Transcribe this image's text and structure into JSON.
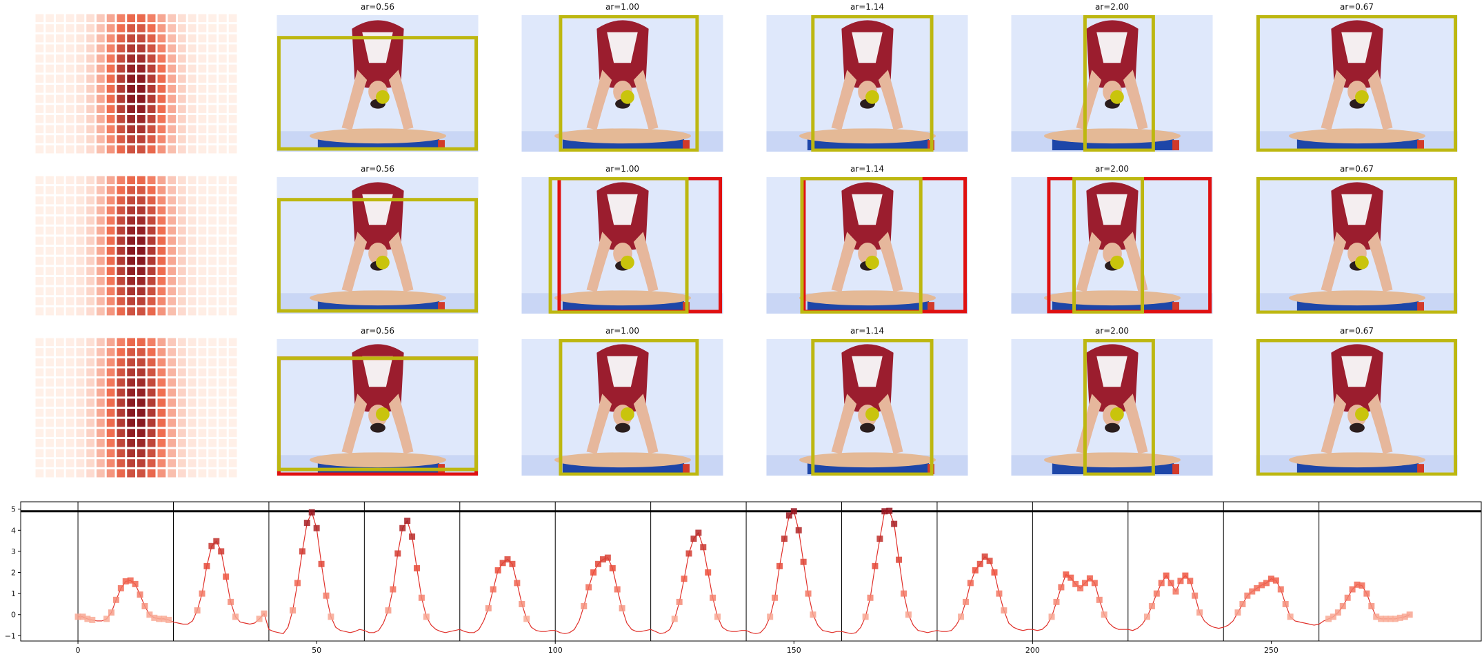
{
  "colors": {
    "box_yellow": "#bdb710",
    "box_red": "#e01010",
    "point_yellow": "#c9c40c",
    "sky": "#dfe8fb",
    "sky_edge": "#c9d6f5",
    "suit": "#9b1d2e",
    "skin": "#e6b79c",
    "beam": "#e4b996",
    "base": "#1d46a8",
    "line": "#e0302a",
    "axis": "#000000"
  },
  "panel_rows": [
    {
      "heatmap": true,
      "panels": [
        {
          "title": "ar=0.56",
          "yellow": true,
          "red": "none",
          "dot": "low"
        },
        {
          "title": "ar=1.00",
          "yellow": true,
          "red": "none",
          "dot": "low"
        },
        {
          "title": "ar=1.14",
          "yellow": true,
          "red": "none",
          "dot": "low"
        },
        {
          "title": "ar=2.00",
          "yellow": true,
          "red": "none",
          "dot": "low"
        },
        {
          "title": "ar=0.67",
          "yellow": true,
          "red": "none",
          "dot": "low"
        }
      ]
    },
    {
      "heatmap": true,
      "panels": [
        {
          "title": "ar=0.56",
          "yellow": true,
          "red": "none",
          "dot": "mid"
        },
        {
          "title": "ar=1.00",
          "yellow": true,
          "red": "right",
          "dot": "mid"
        },
        {
          "title": "ar=1.14",
          "yellow": true,
          "red": "right",
          "dot": "mid"
        },
        {
          "title": "ar=2.00",
          "yellow": true,
          "red": "right",
          "dot": "mid"
        },
        {
          "title": "ar=0.67",
          "yellow": true,
          "red": "none",
          "dot": "mid"
        }
      ]
    },
    {
      "heatmap": true,
      "panels": [
        {
          "title": "ar=0.56",
          "yellow": true,
          "red": "tall",
          "dot": "high"
        },
        {
          "title": "ar=1.00",
          "yellow": true,
          "red": "none",
          "dot": "high"
        },
        {
          "title": "ar=1.14",
          "yellow": true,
          "red": "none",
          "dot": "high"
        },
        {
          "title": "ar=2.00",
          "yellow": true,
          "red": "none",
          "dot": "high"
        },
        {
          "title": "ar=0.67",
          "yellow": true,
          "red": "none",
          "dot": "high"
        }
      ]
    }
  ],
  "chart_data": {
    "type": "line",
    "xlim": [
      -12,
      294
    ],
    "ylim": [
      -1.25,
      5.35
    ],
    "xticks": [
      0,
      50,
      100,
      150,
      200,
      250
    ],
    "yticks": [
      -1,
      0,
      1,
      2,
      3,
      4,
      5
    ],
    "xtick_labels": [
      "0",
      "50",
      "100",
      "150",
      "200",
      "250"
    ],
    "ytick_labels": [
      "−1",
      "0",
      "1",
      "2",
      "3",
      "4",
      "5"
    ],
    "threshold": 4.9,
    "segment_boundaries": [
      0,
      20,
      40,
      60,
      80,
      100,
      120,
      140,
      160,
      180,
      200,
      220,
      240,
      260
    ],
    "segment_peaks": [
      1.62,
      3.48,
      4.85,
      4.45,
      2.62,
      2.7,
      3.88,
      4.9,
      4.92,
      2.75,
      1.9,
      1.85,
      1.7,
      1.42
    ],
    "series": [
      {
        "values": [
          -0.1,
          -0.1,
          -0.2,
          -0.25,
          -0.3,
          -0.3,
          -0.2,
          0.1,
          0.7,
          1.25,
          1.58,
          1.62,
          1.45,
          0.95,
          0.4,
          0.0,
          -0.15,
          -0.2,
          -0.2,
          -0.25,
          -0.35,
          -0.4,
          -0.45,
          -0.45,
          -0.3,
          0.2,
          1.0,
          2.3,
          3.25,
          3.48,
          3.0,
          1.8,
          0.6,
          -0.1,
          -0.35,
          -0.4,
          -0.45,
          -0.4,
          -0.2,
          0.05,
          -0.7,
          -0.8,
          -0.85,
          -0.9,
          -0.6,
          0.2,
          1.5,
          3.0,
          4.35,
          4.85,
          4.1,
          2.4,
          0.9,
          -0.1,
          -0.6,
          -0.75,
          -0.8,
          -0.85,
          -0.8,
          -0.7,
          -0.75,
          -0.85,
          -0.85,
          -0.75,
          -0.4,
          0.2,
          1.2,
          2.9,
          4.1,
          4.45,
          3.7,
          2.2,
          0.8,
          -0.1,
          -0.5,
          -0.7,
          -0.8,
          -0.85,
          -0.8,
          -0.75,
          -0.7,
          -0.8,
          -0.85,
          -0.85,
          -0.7,
          -0.3,
          0.3,
          1.2,
          2.1,
          2.45,
          2.62,
          2.4,
          1.5,
          0.5,
          -0.2,
          -0.6,
          -0.75,
          -0.8,
          -0.8,
          -0.75,
          -0.75,
          -0.85,
          -0.9,
          -0.85,
          -0.7,
          -0.3,
          0.4,
          1.3,
          2.0,
          2.4,
          2.62,
          2.7,
          2.2,
          1.2,
          0.3,
          -0.4,
          -0.7,
          -0.8,
          -0.8,
          -0.75,
          -0.7,
          -0.8,
          -0.9,
          -0.85,
          -0.7,
          -0.2,
          0.6,
          1.7,
          2.9,
          3.6,
          3.88,
          3.2,
          2.0,
          0.8,
          -0.1,
          -0.6,
          -0.75,
          -0.8,
          -0.8,
          -0.75,
          -0.75,
          -0.85,
          -0.9,
          -0.85,
          -0.6,
          -0.1,
          0.8,
          2.3,
          3.6,
          4.7,
          4.9,
          4.0,
          2.5,
          1.0,
          0.0,
          -0.5,
          -0.75,
          -0.8,
          -0.85,
          -0.8,
          -0.8,
          -0.85,
          -0.9,
          -0.85,
          -0.6,
          -0.1,
          0.8,
          2.3,
          3.6,
          4.9,
          4.92,
          4.3,
          2.6,
          1.0,
          0.0,
          -0.5,
          -0.75,
          -0.8,
          -0.85,
          -0.8,
          -0.75,
          -0.8,
          -0.8,
          -0.75,
          -0.5,
          -0.1,
          0.6,
          1.5,
          2.1,
          2.4,
          2.75,
          2.55,
          2.0,
          1.0,
          0.2,
          -0.4,
          -0.6,
          -0.7,
          -0.75,
          -0.7,
          -0.7,
          -0.75,
          -0.7,
          -0.5,
          -0.1,
          0.6,
          1.3,
          1.9,
          1.75,
          1.45,
          1.25,
          1.5,
          1.72,
          1.5,
          0.7,
          0.0,
          -0.4,
          -0.6,
          -0.7,
          -0.7,
          -0.7,
          -0.75,
          -0.65,
          -0.45,
          -0.1,
          0.4,
          1.0,
          1.5,
          1.85,
          1.5,
          1.1,
          1.6,
          1.85,
          1.6,
          0.9,
          0.1,
          -0.3,
          -0.5,
          -0.6,
          -0.65,
          -0.6,
          -0.5,
          -0.3,
          0.1,
          0.5,
          0.9,
          1.1,
          1.25,
          1.4,
          1.5,
          1.7,
          1.62,
          1.2,
          0.5,
          -0.1,
          -0.3,
          -0.35,
          -0.4,
          -0.45,
          -0.5,
          -0.45,
          -0.3,
          -0.2,
          -0.1,
          0.1,
          0.4,
          0.8,
          1.2,
          1.42,
          1.38,
          1.0,
          0.4,
          -0.1,
          -0.2,
          -0.2,
          -0.2,
          -0.2,
          -0.15,
          -0.1,
          0.0
        ]
      }
    ]
  }
}
